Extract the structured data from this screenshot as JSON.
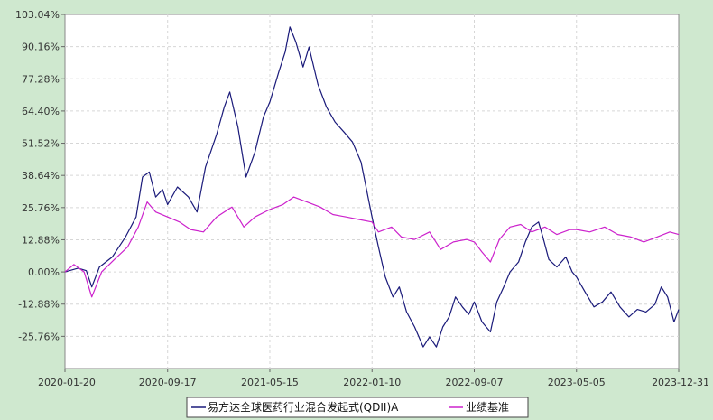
{
  "chart_data": {
    "type": "line",
    "y_ticks": [
      "103.04%",
      "90.16%",
      "77.28%",
      "64.40%",
      "51.52%",
      "38.64%",
      "25.76%",
      "12.88%",
      "0.00%",
      "-12.88%",
      "-25.76%"
    ],
    "x_ticks": [
      "2020-01-20",
      "2020-09-17",
      "2021-05-15",
      "2022-01-10",
      "2022-09-07",
      "2023-05-05",
      "2023-12-31"
    ],
    "ylim": [
      -38.64,
      103.04
    ],
    "xlim": [
      "2020-01-20",
      "2023-12-31"
    ],
    "grid": true,
    "legend_placement": "bottom-center",
    "series": [
      {
        "name": "易方达全球医药行业混合发起式(QDII)A",
        "color": "#1a1a7a",
        "points": [
          [
            "2020-01-20",
            0.0
          ],
          [
            "2020-02-20",
            1.5
          ],
          [
            "2020-03-10",
            0.5
          ],
          [
            "2020-03-23",
            -6.0
          ],
          [
            "2020-04-10",
            2.0
          ],
          [
            "2020-05-10",
            6.0
          ],
          [
            "2020-06-10",
            14.0
          ],
          [
            "2020-07-05",
            22.0
          ],
          [
            "2020-07-20",
            38.0
          ],
          [
            "2020-08-05",
            40.0
          ],
          [
            "2020-08-20",
            30.0
          ],
          [
            "2020-09-05",
            33.0
          ],
          [
            "2020-09-17",
            27.0
          ],
          [
            "2020-10-10",
            34.0
          ],
          [
            "2020-11-05",
            30.0
          ],
          [
            "2020-11-25",
            24.0
          ],
          [
            "2020-12-15",
            42.0
          ],
          [
            "2021-01-10",
            55.0
          ],
          [
            "2021-01-28",
            66.0
          ],
          [
            "2021-02-10",
            72.0
          ],
          [
            "2021-03-01",
            58.0
          ],
          [
            "2021-03-20",
            38.0
          ],
          [
            "2021-04-10",
            48.0
          ],
          [
            "2021-04-30",
            62.0
          ],
          [
            "2021-05-15",
            68.0
          ],
          [
            "2021-06-05",
            80.0
          ],
          [
            "2021-06-20",
            88.0
          ],
          [
            "2021-07-01",
            98.0
          ],
          [
            "2021-07-15",
            92.0
          ],
          [
            "2021-08-01",
            82.0
          ],
          [
            "2021-08-15",
            90.0
          ],
          [
            "2021-09-05",
            75.0
          ],
          [
            "2021-09-25",
            66.0
          ],
          [
            "2021-10-15",
            60.0
          ],
          [
            "2021-11-05",
            56.0
          ],
          [
            "2021-11-25",
            52.0
          ],
          [
            "2021-12-15",
            44.0
          ],
          [
            "2022-01-10",
            22.0
          ],
          [
            "2022-01-25",
            10.0
          ],
          [
            "2022-02-10",
            -2.0
          ],
          [
            "2022-02-28",
            -10.0
          ],
          [
            "2022-03-15",
            -6.0
          ],
          [
            "2022-04-01",
            -16.0
          ],
          [
            "2022-04-20",
            -22.0
          ],
          [
            "2022-05-10",
            -30.0
          ],
          [
            "2022-05-25",
            -26.0
          ],
          [
            "2022-06-10",
            -30.0
          ],
          [
            "2022-06-25",
            -22.0
          ],
          [
            "2022-07-10",
            -18.0
          ],
          [
            "2022-07-25",
            -10.0
          ],
          [
            "2022-08-10",
            -14.0
          ],
          [
            "2022-08-25",
            -17.0
          ],
          [
            "2022-09-07",
            -12.0
          ],
          [
            "2022-09-25",
            -20.0
          ],
          [
            "2022-10-15",
            -24.0
          ],
          [
            "2022-10-30",
            -12.0
          ],
          [
            "2022-11-15",
            -6.0
          ],
          [
            "2022-11-30",
            0.0
          ],
          [
            "2022-12-20",
            4.0
          ],
          [
            "2023-01-05",
            12.0
          ],
          [
            "2023-01-20",
            18.0
          ],
          [
            "2023-02-05",
            20.0
          ],
          [
            "2023-02-15",
            14.0
          ],
          [
            "2023-03-01",
            5.0
          ],
          [
            "2023-03-20",
            2.0
          ],
          [
            "2023-04-10",
            6.0
          ],
          [
            "2023-04-25",
            0.0
          ],
          [
            "2023-05-05",
            -2.0
          ],
          [
            "2023-05-25",
            -8.0
          ],
          [
            "2023-06-15",
            -14.0
          ],
          [
            "2023-07-05",
            -12.0
          ],
          [
            "2023-07-25",
            -8.0
          ],
          [
            "2023-08-15",
            -14.0
          ],
          [
            "2023-09-05",
            -18.0
          ],
          [
            "2023-09-25",
            -15.0
          ],
          [
            "2023-10-15",
            -16.0
          ],
          [
            "2023-11-05",
            -13.0
          ],
          [
            "2023-11-20",
            -6.0
          ],
          [
            "2023-12-05",
            -10.0
          ],
          [
            "2023-12-20",
            -20.0
          ],
          [
            "2023-12-31",
            -15.0
          ]
        ]
      },
      {
        "name": "业绩基准",
        "color": "#cc22cc",
        "points": [
          [
            "2020-01-20",
            0.0
          ],
          [
            "2020-02-10",
            3.0
          ],
          [
            "2020-03-05",
            0.0
          ],
          [
            "2020-03-23",
            -10.0
          ],
          [
            "2020-04-15",
            0.0
          ],
          [
            "2020-05-15",
            5.0
          ],
          [
            "2020-06-15",
            10.0
          ],
          [
            "2020-07-10",
            18.0
          ],
          [
            "2020-07-31",
            28.0
          ],
          [
            "2020-08-20",
            24.0
          ],
          [
            "2020-09-17",
            22.0
          ],
          [
            "2020-10-15",
            20.0
          ],
          [
            "2020-11-10",
            17.0
          ],
          [
            "2020-12-10",
            16.0
          ],
          [
            "2021-01-10",
            22.0
          ],
          [
            "2021-02-15",
            26.0
          ],
          [
            "2021-03-15",
            18.0
          ],
          [
            "2021-04-10",
            22.0
          ],
          [
            "2021-05-15",
            25.0
          ],
          [
            "2021-06-15",
            27.0
          ],
          [
            "2021-07-10",
            30.0
          ],
          [
            "2021-08-10",
            28.0
          ],
          [
            "2021-09-10",
            26.0
          ],
          [
            "2021-10-10",
            23.0
          ],
          [
            "2021-11-10",
            22.0
          ],
          [
            "2021-12-10",
            21.0
          ],
          [
            "2022-01-10",
            20.0
          ],
          [
            "2022-01-25",
            16.0
          ],
          [
            "2022-02-25",
            18.0
          ],
          [
            "2022-03-20",
            14.0
          ],
          [
            "2022-04-20",
            13.0
          ],
          [
            "2022-05-25",
            16.0
          ],
          [
            "2022-06-20",
            9.0
          ],
          [
            "2022-07-20",
            12.0
          ],
          [
            "2022-08-20",
            13.0
          ],
          [
            "2022-09-07",
            12.0
          ],
          [
            "2022-09-25",
            8.0
          ],
          [
            "2022-10-15",
            4.0
          ],
          [
            "2022-11-05",
            13.0
          ],
          [
            "2022-11-30",
            18.0
          ],
          [
            "2022-12-25",
            19.0
          ],
          [
            "2023-01-20",
            16.0
          ],
          [
            "2023-02-20",
            18.0
          ],
          [
            "2023-03-20",
            15.0
          ],
          [
            "2023-04-20",
            17.0
          ],
          [
            "2023-05-05",
            17.0
          ],
          [
            "2023-06-05",
            16.0
          ],
          [
            "2023-07-10",
            18.0
          ],
          [
            "2023-08-10",
            15.0
          ],
          [
            "2023-09-10",
            14.0
          ],
          [
            "2023-10-10",
            12.0
          ],
          [
            "2023-11-10",
            14.0
          ],
          [
            "2023-12-10",
            16.0
          ],
          [
            "2023-12-31",
            15.0
          ]
        ]
      }
    ]
  }
}
